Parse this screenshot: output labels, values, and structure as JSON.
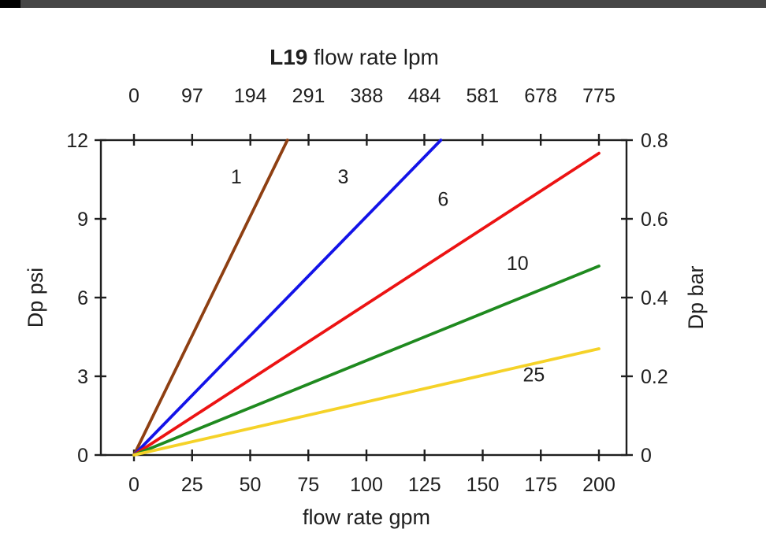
{
  "window": {
    "background": "#ffffff",
    "top_strip_color": "#464646",
    "top_strip_accent_color": "#000000"
  },
  "chart_data": {
    "type": "line",
    "title": {
      "bold": "L19",
      "rest": " flow rate lpm"
    },
    "grid": false,
    "legend": "none (inline series labels)",
    "axis_color": "#1f1f1f",
    "text_color": "#1f1f1f",
    "x_bottom": {
      "label": "flow rate gpm",
      "range": [
        0,
        200
      ],
      "ticks": [
        0,
        25,
        50,
        75,
        100,
        125,
        150,
        175,
        200
      ]
    },
    "x_top": {
      "label": "flow rate lpm",
      "range": [
        0,
        775
      ],
      "ticks": [
        0,
        97,
        194,
        291,
        388,
        484,
        581,
        678,
        775
      ]
    },
    "y_left": {
      "label": "Dp psi",
      "range": [
        0,
        12
      ],
      "ticks": [
        0,
        3,
        6,
        9,
        12
      ]
    },
    "y_right": {
      "label": "Dp bar",
      "range": [
        0,
        0.8
      ],
      "ticks": [
        0,
        0.2,
        0.4,
        0.6,
        0.8
      ]
    },
    "series": [
      {
        "name": "1",
        "color": "#8e3f12",
        "points": [
          [
            0,
            0
          ],
          [
            66,
            12
          ]
        ],
        "label_pos": [
          44,
          10.35
        ]
      },
      {
        "name": "3",
        "color": "#1313e8",
        "points": [
          [
            0,
            0
          ],
          [
            132,
            12
          ]
        ],
        "label_pos": [
          90,
          10.35
        ]
      },
      {
        "name": "6",
        "color": "#ec1313",
        "points": [
          [
            0,
            0
          ],
          [
            200,
            11.5
          ]
        ],
        "label_pos": [
          133,
          9.5
        ]
      },
      {
        "name": "10",
        "color": "#1f8a1f",
        "points": [
          [
            0,
            0
          ],
          [
            200,
            7.2
          ]
        ],
        "label_pos": [
          165,
          7.05
        ]
      },
      {
        "name": "25",
        "color": "#f5d228",
        "points": [
          [
            0,
            0
          ],
          [
            200,
            4.05
          ]
        ],
        "label_pos": [
          172,
          2.8
        ]
      }
    ]
  }
}
